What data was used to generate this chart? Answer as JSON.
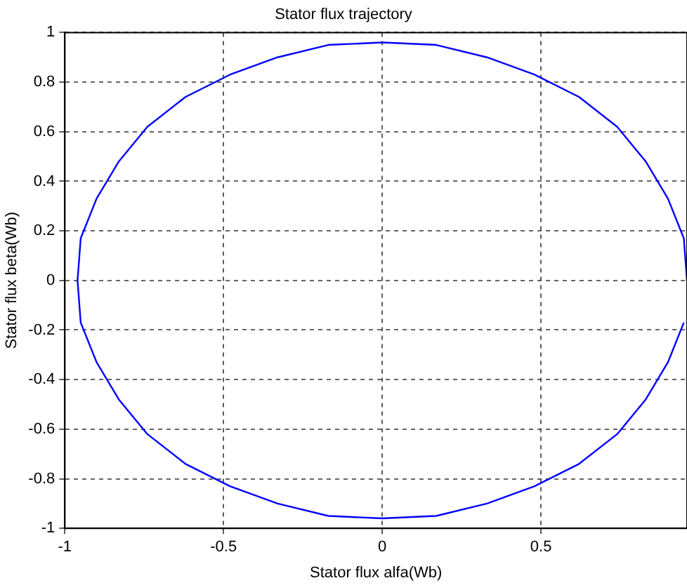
{
  "chart_data": {
    "type": "line",
    "title": "Stator flux trajectory",
    "xlabel": "Stator flux alfa(Wb)",
    "ylabel": "Stator flux beta(Wb)",
    "series": [
      {
        "color": "#0000ff",
        "x": [
          0.96,
          0.95,
          0.9,
          0.83,
          0.74,
          0.62,
          0.48,
          0.33,
          0.17,
          0,
          -0.17,
          -0.33,
          -0.48,
          -0.62,
          -0.74,
          -0.83,
          -0.9,
          -0.95,
          -0.96,
          -0.95,
          -0.9,
          -0.83,
          -0.74,
          -0.62,
          -0.48,
          -0.33,
          -0.17,
          0,
          0.17,
          0.33,
          0.48,
          0.62,
          0.74,
          0.83,
          0.9,
          0.95
        ],
        "values": [
          0,
          0.17,
          0.33,
          0.48,
          0.62,
          0.74,
          0.83,
          0.9,
          0.95,
          0.96,
          0.95,
          0.9,
          0.83,
          0.74,
          0.62,
          0.48,
          0.33,
          0.17,
          0,
          -0.17,
          -0.33,
          -0.48,
          -0.62,
          -0.74,
          -0.83,
          -0.9,
          -0.95,
          -0.96,
          -0.95,
          -0.9,
          -0.83,
          -0.74,
          -0.62,
          -0.48,
          -0.33,
          -0.17
        ]
      }
    ],
    "xlim": [
      -1,
      0.96
    ],
    "xticks": [
      -1,
      -0.5,
      0,
      0.5
    ],
    "ylim": [
      -1,
      1
    ],
    "yticks": [
      -1,
      -0.8,
      -0.6,
      -0.4,
      -0.2,
      0,
      0.2,
      0.4,
      0.6,
      0.8,
      1
    ],
    "grid": true,
    "legend": false,
    "marker": "none",
    "line_style": "solid"
  }
}
